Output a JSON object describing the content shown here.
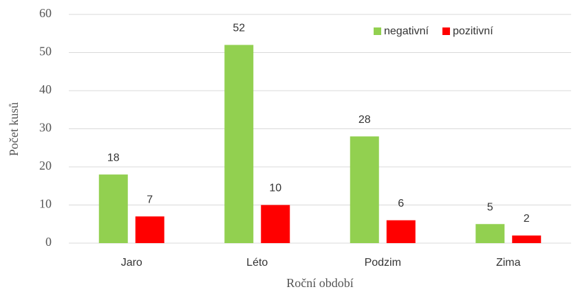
{
  "chart_data": {
    "type": "bar",
    "categories": [
      "Jaro",
      "Léto",
      "Podzim",
      "Zima"
    ],
    "series": [
      {
        "name": "negativní",
        "color": "#92d050",
        "values": [
          18,
          52,
          28,
          5
        ]
      },
      {
        "name": "pozitivní",
        "color": "#ff0000",
        "values": [
          7,
          10,
          6,
          2
        ]
      }
    ],
    "y_label": "Počet kusů",
    "x_label": "Roční období",
    "ylim": [
      0,
      60
    ],
    "yticks": [
      0,
      10,
      20,
      30,
      40,
      50,
      60
    ],
    "grid": true,
    "legend": "top-right"
  }
}
